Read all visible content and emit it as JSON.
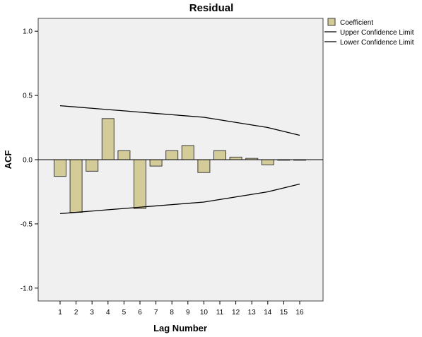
{
  "chart_data": {
    "type": "bar",
    "title": "Residual",
    "xlabel": "Lag Number",
    "ylabel": "ACF",
    "ylim": [
      -1.1,
      1.1
    ],
    "yticks": [
      "1.0",
      "0.5",
      "0.0",
      "-0.5",
      "-1.0"
    ],
    "ytick_values": [
      1.0,
      0.5,
      0.0,
      -0.5,
      -1.0
    ],
    "categories": [
      "1",
      "2",
      "3",
      "4",
      "5",
      "6",
      "7",
      "8",
      "9",
      "10",
      "11",
      "12",
      "13",
      "14",
      "15",
      "16"
    ],
    "series": [
      {
        "name": "Coefficient",
        "kind": "bar",
        "values": [
          -0.13,
          -0.41,
          -0.09,
          0.32,
          0.07,
          -0.38,
          -0.05,
          0.07,
          0.11,
          -0.1,
          0.07,
          0.02,
          0.01,
          -0.04,
          0.0,
          0.0
        ]
      },
      {
        "name": "Upper Confidence Limit",
        "kind": "line",
        "values": [
          0.42,
          0.41,
          0.4,
          0.39,
          0.38,
          0.37,
          0.36,
          0.35,
          0.34,
          0.33,
          0.31,
          0.29,
          0.27,
          0.25,
          0.22,
          0.19
        ]
      },
      {
        "name": "Lower Confidence Limit",
        "kind": "line",
        "values": [
          -0.42,
          -0.41,
          -0.4,
          -0.39,
          -0.38,
          -0.37,
          -0.36,
          -0.35,
          -0.34,
          -0.33,
          -0.31,
          -0.29,
          -0.27,
          -0.25,
          -0.22,
          -0.19
        ]
      }
    ],
    "legend_position": "top-right",
    "grid": false,
    "colors": {
      "bar_fill": "#d4cc98",
      "bar_stroke": "#3c3c3c",
      "plot_background": "#f0f0f0",
      "line": "#000000"
    }
  }
}
